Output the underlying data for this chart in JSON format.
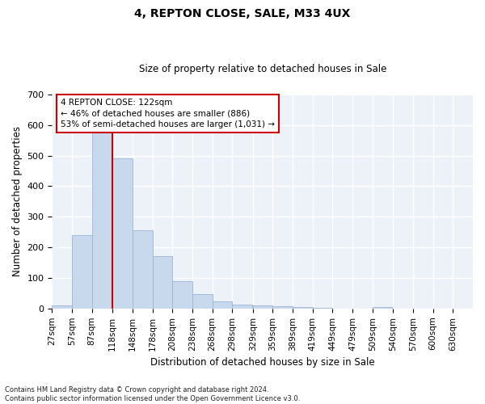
{
  "title": "4, REPTON CLOSE, SALE, M33 4UX",
  "subtitle": "Size of property relative to detached houses in Sale",
  "xlabel": "Distribution of detached houses by size in Sale",
  "ylabel": "Number of detached properties",
  "bar_color": "#c8d9ee",
  "bar_edge_color": "#9ab4d4",
  "background_color": "#edf2f9",
  "grid_color": "#ffffff",
  "annotation_line_color": "#cc0000",
  "annotation_box_color": "#cc0000",
  "property_line_x": 118,
  "annotation_text": "4 REPTON CLOSE: 122sqm\n← 46% of detached houses are smaller (886)\n53% of semi-detached houses are larger (1,031) →",
  "bins_start": [
    27,
    57,
    87,
    118,
    148,
    178,
    208,
    238,
    268,
    298,
    329,
    359,
    389,
    419,
    449,
    479,
    509,
    540,
    570,
    600,
    630
  ],
  "bin_width": 30,
  "bar_heights": [
    10,
    240,
    575,
    490,
    255,
    170,
    90,
    47,
    24,
    13,
    9,
    7,
    5,
    2,
    0,
    0,
    5,
    0,
    0,
    0,
    0
  ],
  "ylim": [
    0,
    700
  ],
  "yticks": [
    0,
    100,
    200,
    300,
    400,
    500,
    600,
    700
  ],
  "footnote": "Contains HM Land Registry data © Crown copyright and database right 2024.\nContains public sector information licensed under the Open Government Licence v3.0.",
  "tick_labels": [
    "27sqm",
    "57sqm",
    "87sqm",
    "118sqm",
    "148sqm",
    "178sqm",
    "208sqm",
    "238sqm",
    "268sqm",
    "298sqm",
    "329sqm",
    "359sqm",
    "389sqm",
    "419sqm",
    "449sqm",
    "479sqm",
    "509sqm",
    "540sqm",
    "570sqm",
    "600sqm",
    "630sqm"
  ]
}
